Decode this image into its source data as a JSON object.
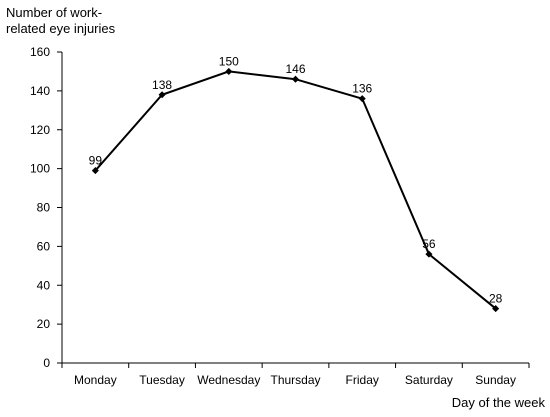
{
  "chart_data": {
    "type": "line",
    "title": "",
    "ylabel_lines": [
      "Number of work-",
      "related eye injuries"
    ],
    "xlabel": "Day of the week",
    "categories": [
      "Monday",
      "Tuesday",
      "Wednesday",
      "Thursday",
      "Friday",
      "Saturday",
      "Sunday"
    ],
    "values": [
      99,
      138,
      150,
      146,
      136,
      56,
      28
    ],
    "data_labels": [
      "99",
      "138",
      "150",
      "146",
      "136",
      "56",
      "28"
    ],
    "ylim": [
      0,
      160
    ],
    "yticks": [
      0,
      20,
      40,
      60,
      80,
      100,
      120,
      140,
      160
    ],
    "ytick_labels": [
      "0",
      "20",
      "40",
      "60",
      "80",
      "100",
      "120",
      "140",
      "160"
    ],
    "grid": false,
    "line_color": "#000000"
  }
}
